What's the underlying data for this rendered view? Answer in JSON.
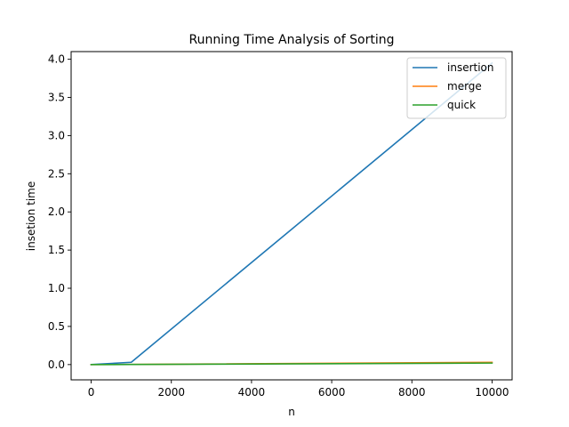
{
  "chart_data": {
    "type": "line",
    "title": "Running Time Analysis of Sorting",
    "xlabel": "n",
    "ylabel": "insetion time",
    "x": [
      0,
      1000,
      10000
    ],
    "series": [
      {
        "name": "insertion",
        "color": "#1f77b4",
        "values": [
          0.0,
          0.03,
          3.95
        ]
      },
      {
        "name": "merge",
        "color": "#ff7f0e",
        "values": [
          0.0,
          0.002,
          0.03
        ]
      },
      {
        "name": "quick",
        "color": "#2ca02c",
        "values": [
          0.0,
          0.0015,
          0.02
        ]
      }
    ],
    "xlim": [
      -500,
      10500
    ],
    "ylim": [
      -0.2,
      4.1
    ],
    "xticks": [
      0,
      2000,
      4000,
      6000,
      8000,
      10000
    ],
    "yticks": [
      0.0,
      0.5,
      1.0,
      1.5,
      2.0,
      2.5,
      3.0,
      3.5,
      4.0
    ],
    "ytick_labels": [
      "0.0",
      "0.5",
      "1.0",
      "1.5",
      "2.0",
      "2.5",
      "3.0",
      "3.5",
      "4.0"
    ],
    "grid": false,
    "legend_position": "top-right"
  }
}
